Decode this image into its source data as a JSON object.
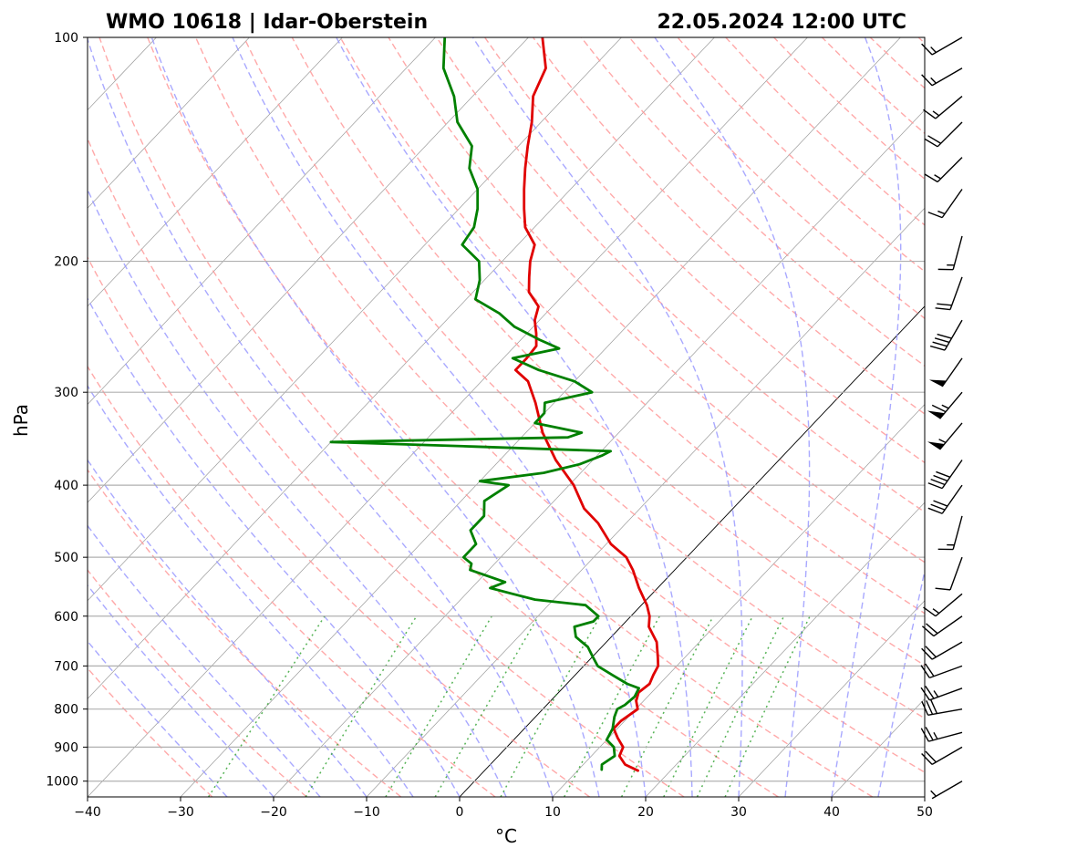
{
  "header": {
    "left_title": "WMO 10618 | Idar-Oberstein",
    "right_title": "22.05.2024 12:00 UTC"
  },
  "colors": {
    "temperature": "#e00000",
    "dewpoint": "#008000",
    "isobar": "#b0b0b0",
    "isotherm": "#808080",
    "dry_adiabat": "#ff9a9a",
    "moist_adiabat": "#9a9aff",
    "mixing_ratio": "#2ca02c",
    "wind_barb": "#000000"
  },
  "chart_data": {
    "type": "line",
    "subtype": "skew-T log-p diagram",
    "xlabel": "°C",
    "ylabel": "hPa",
    "xlim": [
      -40,
      50
    ],
    "ylim": [
      1050,
      100
    ],
    "x_ticks": [
      "−40",
      "−30",
      "−20",
      "−10",
      "0",
      "10",
      "20",
      "30",
      "40",
      "50"
    ],
    "y_ticks": [
      "100",
      "200",
      "300",
      "400",
      "500",
      "600",
      "700",
      "800",
      "900",
      "1000"
    ],
    "series": [
      {
        "name": "Temperature",
        "color": "#e00000",
        "points": [
          [
            968,
            16.5
          ],
          [
            950,
            14.5
          ],
          [
            925,
            13
          ],
          [
            900,
            12.5
          ],
          [
            875,
            11
          ],
          [
            850,
            9.6
          ],
          [
            830,
            9.6
          ],
          [
            800,
            10.2
          ],
          [
            780,
            9.2
          ],
          [
            760,
            8.6
          ],
          [
            740,
            8.9
          ],
          [
            720,
            8.4
          ],
          [
            700,
            8
          ],
          [
            680,
            7
          ],
          [
            650,
            5.4
          ],
          [
            620,
            3
          ],
          [
            600,
            2
          ],
          [
            580,
            0.6
          ],
          [
            550,
            -2
          ],
          [
            520,
            -4.5
          ],
          [
            500,
            -6.5
          ],
          [
            480,
            -9.5
          ],
          [
            450,
            -13
          ],
          [
            430,
            -16
          ],
          [
            400,
            -19.5
          ],
          [
            370,
            -24
          ],
          [
            340,
            -28.2
          ],
          [
            310,
            -32
          ],
          [
            290,
            -35
          ],
          [
            280,
            -37.5
          ],
          [
            270,
            -37.5
          ],
          [
            260,
            -37.7
          ],
          [
            250,
            -39
          ],
          [
            240,
            -40.5
          ],
          [
            230,
            -41.5
          ],
          [
            220,
            -44
          ],
          [
            210,
            -45.5
          ],
          [
            200,
            -47
          ],
          [
            190,
            -48.2
          ],
          [
            180,
            -51
          ],
          [
            170,
            -53
          ],
          [
            160,
            -55
          ],
          [
            150,
            -57
          ],
          [
            140,
            -59
          ],
          [
            130,
            -61
          ],
          [
            120,
            -63.5
          ],
          [
            110,
            -65
          ],
          [
            100,
            -68.5
          ]
        ]
      },
      {
        "name": "Dewpoint",
        "color": "#008000",
        "points": [
          [
            965,
            12.5
          ],
          [
            950,
            12
          ],
          [
            925,
            12.5
          ],
          [
            900,
            11.5
          ],
          [
            880,
            10
          ],
          [
            850,
            9.5
          ],
          [
            820,
            8.5
          ],
          [
            800,
            8
          ],
          [
            790,
            8.4
          ],
          [
            770,
            8.6
          ],
          [
            750,
            8.2
          ],
          [
            740,
            6.5
          ],
          [
            720,
            4
          ],
          [
            700,
            1.5
          ],
          [
            680,
            0
          ],
          [
            660,
            -1.5
          ],
          [
            640,
            -3.8
          ],
          [
            620,
            -5
          ],
          [
            610,
            -3.5
          ],
          [
            600,
            -3.5
          ],
          [
            580,
            -6
          ],
          [
            570,
            -12
          ],
          [
            560,
            -15
          ],
          [
            550,
            -18
          ],
          [
            540,
            -17
          ],
          [
            520,
            -22
          ],
          [
            510,
            -22.5
          ],
          [
            500,
            -24
          ],
          [
            480,
            -24
          ],
          [
            460,
            -26
          ],
          [
            440,
            -26
          ],
          [
            420,
            -27.5
          ],
          [
            400,
            -26.5
          ],
          [
            395,
            -30
          ],
          [
            385,
            -24
          ],
          [
            375,
            -21
          ],
          [
            365,
            -19.5
          ],
          [
            360,
            -19
          ],
          [
            355,
            -34
          ],
          [
            350,
            -50
          ],
          [
            345,
            -25
          ],
          [
            340,
            -24
          ],
          [
            335,
            -27
          ],
          [
            330,
            -30
          ],
          [
            320,
            -30
          ],
          [
            310,
            -31
          ],
          [
            300,
            -27
          ],
          [
            290,
            -30
          ],
          [
            280,
            -35
          ],
          [
            270,
            -39
          ],
          [
            262,
            -35
          ],
          [
            255,
            -38
          ],
          [
            245,
            -42
          ],
          [
            235,
            -45
          ],
          [
            225,
            -49
          ],
          [
            212,
            -50.5
          ],
          [
            200,
            -52.5
          ],
          [
            190,
            -56
          ],
          [
            180,
            -56.5
          ],
          [
            170,
            -58
          ],
          [
            160,
            -60
          ],
          [
            150,
            -63
          ],
          [
            140,
            -65
          ],
          [
            130,
            -69
          ],
          [
            120,
            -72
          ],
          [
            110,
            -76
          ],
          [
            100,
            -79
          ]
        ]
      }
    ],
    "wind_barbs": [
      {
        "p": 1000,
        "dir": 240,
        "speed": 5
      },
      {
        "p": 900,
        "dir": 240,
        "speed": 20
      },
      {
        "p": 860,
        "dir": 255,
        "speed": 25
      },
      {
        "p": 800,
        "dir": 260,
        "speed": 30
      },
      {
        "p": 750,
        "dir": 250,
        "speed": 25
      },
      {
        "p": 700,
        "dir": 250,
        "speed": 20
      },
      {
        "p": 650,
        "dir": 240,
        "speed": 20
      },
      {
        "p": 600,
        "dir": 235,
        "speed": 20
      },
      {
        "p": 560,
        "dir": 230,
        "speed": 15
      },
      {
        "p": 500,
        "dir": 200,
        "speed": 10
      },
      {
        "p": 440,
        "dir": 195,
        "speed": 15
      },
      {
        "p": 400,
        "dir": 215,
        "speed": 30
      },
      {
        "p": 370,
        "dir": 215,
        "speed": 40
      },
      {
        "p": 330,
        "dir": 220,
        "speed": 55
      },
      {
        "p": 300,
        "dir": 220,
        "speed": 65
      },
      {
        "p": 270,
        "dir": 215,
        "speed": 50
      },
      {
        "p": 240,
        "dir": 210,
        "speed": 40
      },
      {
        "p": 210,
        "dir": 200,
        "speed": 20
      },
      {
        "p": 185,
        "dir": 195,
        "speed": 15
      },
      {
        "p": 160,
        "dir": 215,
        "speed": 15
      },
      {
        "p": 145,
        "dir": 225,
        "speed": 15
      },
      {
        "p": 130,
        "dir": 225,
        "speed": 20
      },
      {
        "p": 120,
        "dir": 230,
        "speed": 15
      },
      {
        "p": 110,
        "dir": 240,
        "speed": 15
      },
      {
        "p": 100,
        "dir": 240,
        "speed": 15
      }
    ]
  }
}
